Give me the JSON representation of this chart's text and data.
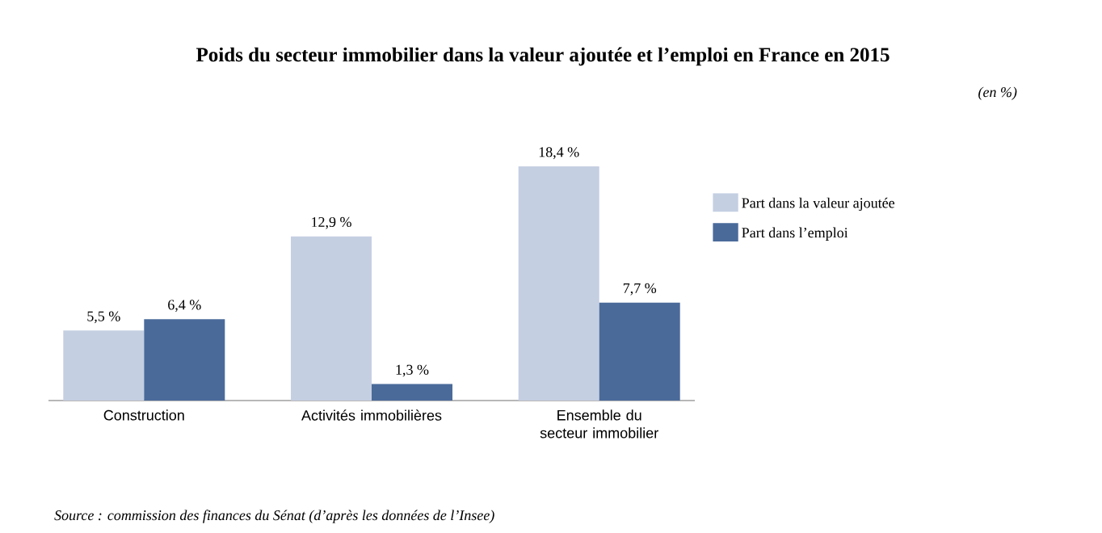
{
  "chart_data": {
    "type": "bar",
    "title": "Poids du secteur immobilier dans la valeur ajoutée et l’emploi en France en 2015",
    "categories": [
      "Construction",
      "Activités immobilières",
      "Ensemble du secteur immobilier"
    ],
    "series": [
      {
        "name": "Part dans la valeur ajoutée",
        "color": "#c5cfe2",
        "values": [
          5.5,
          12.9,
          18.4
        ],
        "value_labels": [
          "5,5 %",
          "12,9 %",
          "18,4 %"
        ]
      },
      {
        "name": "Part dans l’emploi",
        "color": "#4a6a9a",
        "values": [
          6.4,
          1.3,
          7.7
        ],
        "value_labels": [
          "6,4 %",
          "1,3 %",
          "7,7 %"
        ]
      }
    ],
    "legend": "right",
    "annotations": [
      "(en %)",
      "Source : commission des finances du Sénat (d’après les données de l’Insee)"
    ]
  }
}
